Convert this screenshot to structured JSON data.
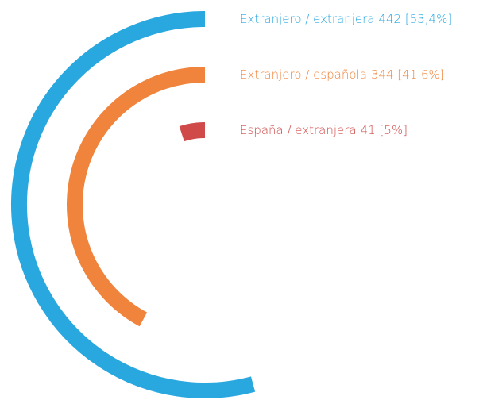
{
  "chart_data": {
    "type": "radial-bar",
    "categories": [
      "Extranjero  / extranjera",
      "Extranjero / española",
      "España / extranjera"
    ],
    "values": [
      442,
      344,
      41
    ],
    "value_labels": [
      "442 [53,4%]",
      "344 [41,6%]",
      "41 [5%]"
    ],
    "colors": [
      "#29a8e0",
      "#f0843c",
      "#d04a4a"
    ],
    "ylim": [
      0,
      816
    ]
  }
}
